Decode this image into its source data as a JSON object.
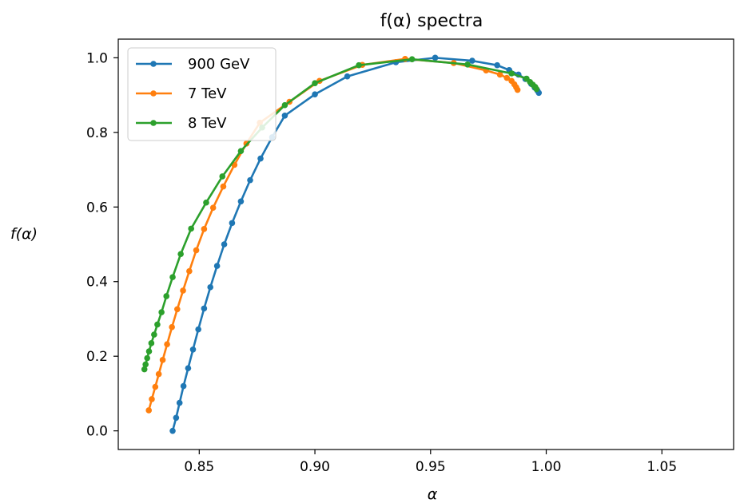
{
  "chart_data": {
    "type": "line",
    "title": "f(α) spectra",
    "xlabel": "α",
    "ylabel": "f(α)",
    "xlim": [
      0.815,
      1.081
    ],
    "ylim": [
      -0.05,
      1.05
    ],
    "xticks": [
      0.85,
      0.9,
      0.95,
      1.0,
      1.05
    ],
    "xtick_labels": [
      "0.85",
      "0.90",
      "0.95",
      "1.00",
      "1.05"
    ],
    "yticks": [
      0.0,
      0.2,
      0.4,
      0.6,
      0.8,
      1.0
    ],
    "ytick_labels": [
      "0.0",
      "0.2",
      "0.4",
      "0.6",
      "0.8",
      "1.0"
    ],
    "grid": false,
    "legend_position": "top-left",
    "series": [
      {
        "name": "900 GeV",
        "color": "#1f77b4",
        "points": [
          [
            0.8385,
            0.0
          ],
          [
            0.84,
            0.035
          ],
          [
            0.8415,
            0.075
          ],
          [
            0.8432,
            0.12
          ],
          [
            0.8452,
            0.168
          ],
          [
            0.8473,
            0.218
          ],
          [
            0.8496,
            0.272
          ],
          [
            0.8521,
            0.328
          ],
          [
            0.8548,
            0.385
          ],
          [
            0.8577,
            0.442
          ],
          [
            0.8608,
            0.5
          ],
          [
            0.8642,
            0.557
          ],
          [
            0.868,
            0.615
          ],
          [
            0.872,
            0.672
          ],
          [
            0.8765,
            0.73
          ],
          [
            0.8815,
            0.787
          ],
          [
            0.887,
            0.845
          ],
          [
            0.9,
            0.902
          ],
          [
            0.914,
            0.95
          ],
          [
            0.935,
            0.988
          ],
          [
            0.952,
            1.0
          ],
          [
            0.968,
            0.992
          ],
          [
            0.9788,
            0.98
          ],
          [
            0.984,
            0.967
          ],
          [
            0.988,
            0.955
          ],
          [
            0.991,
            0.943
          ],
          [
            0.9935,
            0.93
          ],
          [
            0.995,
            0.92
          ],
          [
            0.9962,
            0.912
          ],
          [
            0.9968,
            0.906
          ]
        ]
      },
      {
        "name": "7 TeV",
        "color": "#ff7f0e",
        "points": [
          [
            0.8282,
            0.055
          ],
          [
            0.8295,
            0.085
          ],
          [
            0.831,
            0.118
          ],
          [
            0.8325,
            0.152
          ],
          [
            0.8342,
            0.19
          ],
          [
            0.8361,
            0.232
          ],
          [
            0.8382,
            0.278
          ],
          [
            0.8405,
            0.326
          ],
          [
            0.843,
            0.376
          ],
          [
            0.8457,
            0.428
          ],
          [
            0.8487,
            0.484
          ],
          [
            0.8521,
            0.541
          ],
          [
            0.856,
            0.598
          ],
          [
            0.8604,
            0.655
          ],
          [
            0.8652,
            0.713
          ],
          [
            0.8704,
            0.77
          ],
          [
            0.8762,
            0.826
          ],
          [
            0.889,
            0.882
          ],
          [
            0.902,
            0.938
          ],
          [
            0.9205,
            0.981
          ],
          [
            0.939,
            0.997
          ],
          [
            0.96,
            0.986
          ],
          [
            0.974,
            0.966
          ],
          [
            0.98,
            0.955
          ],
          [
            0.983,
            0.946
          ],
          [
            0.985,
            0.938
          ],
          [
            0.9862,
            0.929
          ],
          [
            0.987,
            0.921
          ],
          [
            0.9876,
            0.914
          ]
        ]
      },
      {
        "name": "8 TeV",
        "color": "#2ca02c",
        "points": [
          [
            0.8263,
            0.165
          ],
          [
            0.8268,
            0.178
          ],
          [
            0.8275,
            0.195
          ],
          [
            0.8283,
            0.213
          ],
          [
            0.8293,
            0.235
          ],
          [
            0.8305,
            0.258
          ],
          [
            0.8319,
            0.285
          ],
          [
            0.8337,
            0.318
          ],
          [
            0.8358,
            0.361
          ],
          [
            0.8385,
            0.412
          ],
          [
            0.842,
            0.474
          ],
          [
            0.8465,
            0.542
          ],
          [
            0.853,
            0.612
          ],
          [
            0.86,
            0.682
          ],
          [
            0.868,
            0.75
          ],
          [
            0.8772,
            0.813
          ],
          [
            0.887,
            0.873
          ],
          [
            0.9,
            0.932
          ],
          [
            0.919,
            0.98
          ],
          [
            0.942,
            0.996
          ],
          [
            0.966,
            0.982
          ],
          [
            0.985,
            0.958
          ],
          [
            0.9915,
            0.944
          ],
          [
            0.993,
            0.935
          ],
          [
            0.9942,
            0.928
          ],
          [
            0.9952,
            0.922
          ],
          [
            0.9958,
            0.916
          ]
        ]
      }
    ]
  }
}
